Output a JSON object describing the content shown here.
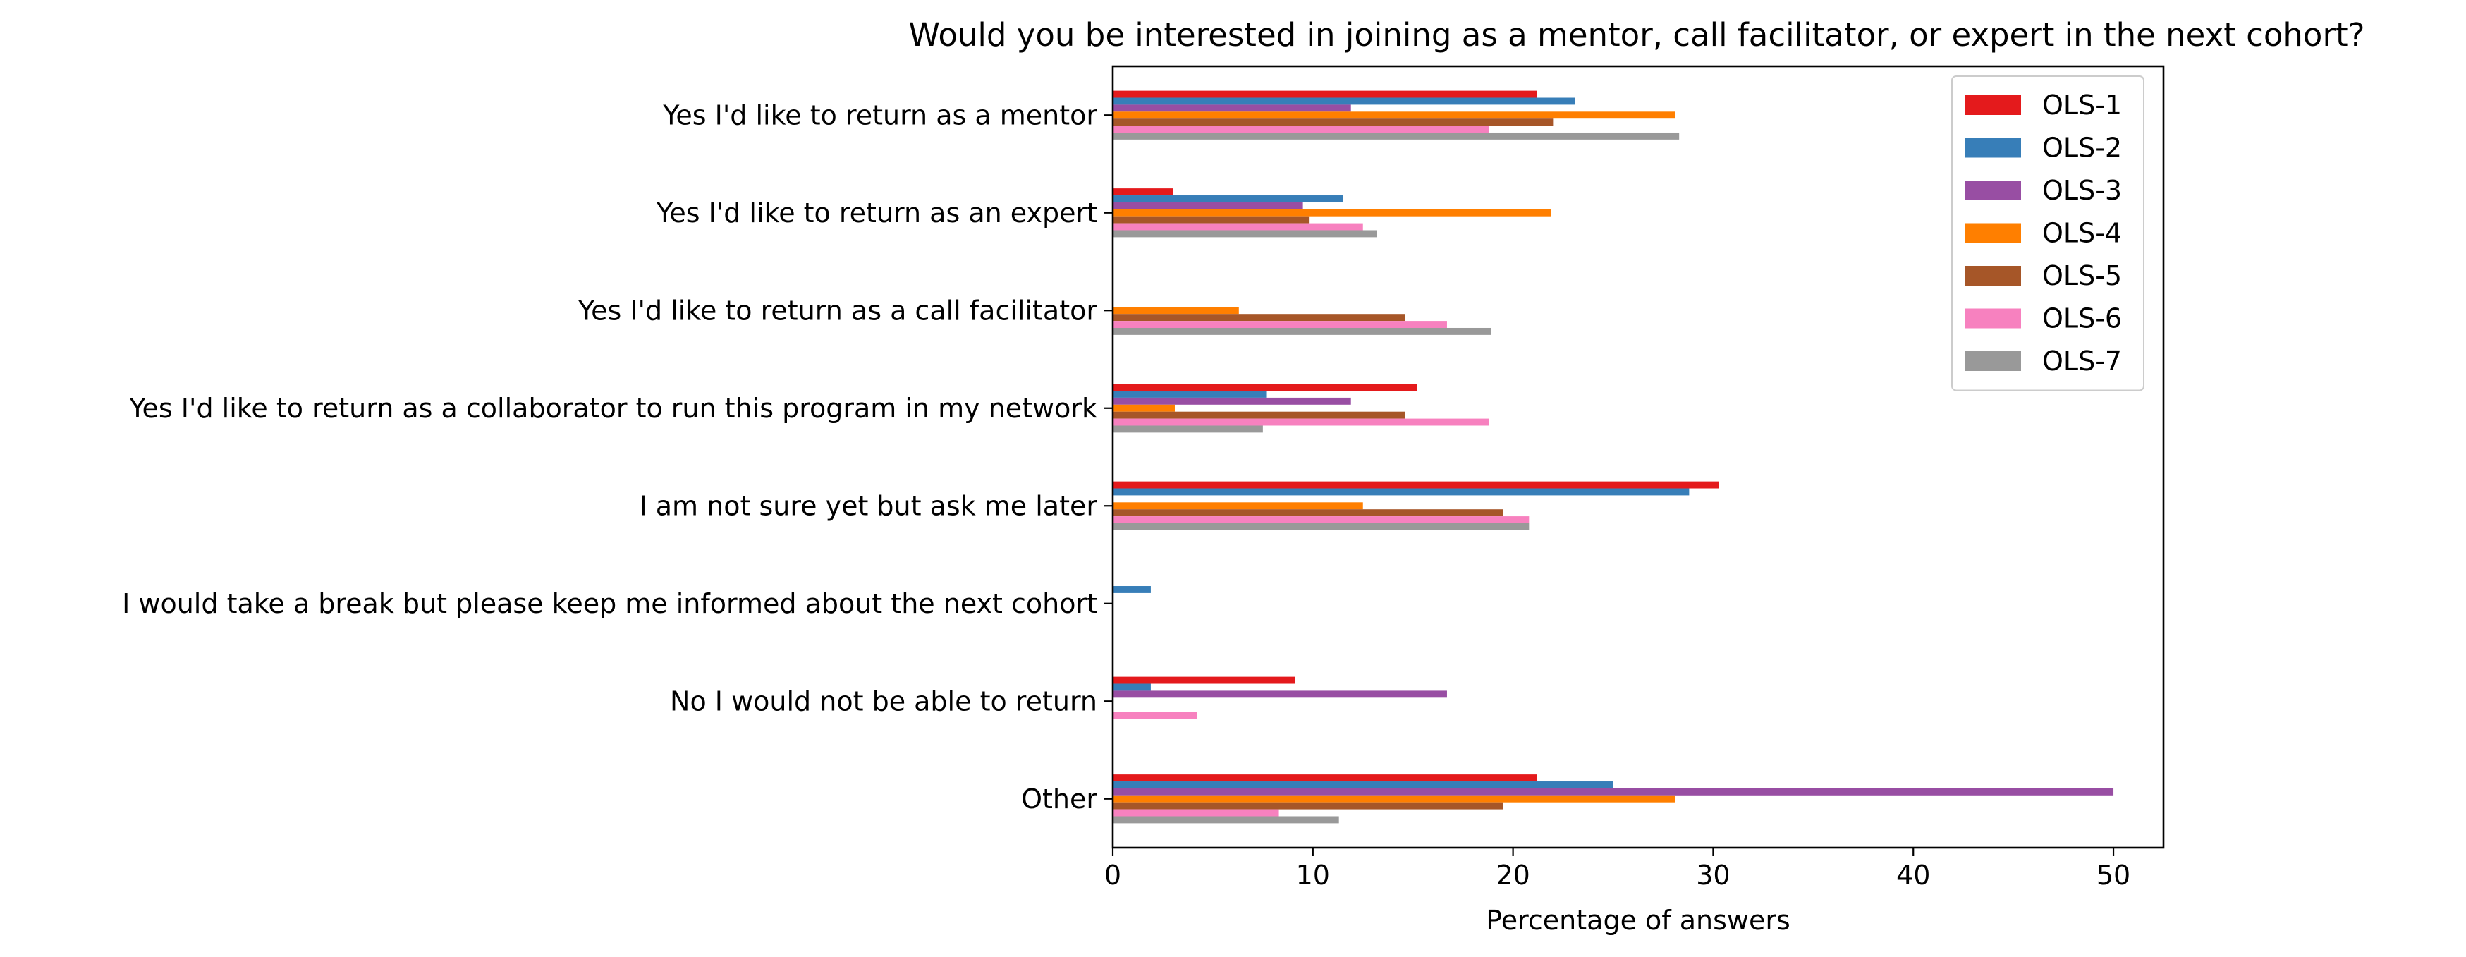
{
  "chart_data": {
    "type": "bar",
    "orientation": "horizontal",
    "title": "Would you be interested in joining as a mentor, call facilitator, or expert in the next cohort?",
    "xlabel": "Percentage of answers",
    "ylabel": "",
    "xlim": [
      0,
      52.5
    ],
    "xticks": [
      0,
      10,
      20,
      30,
      40,
      50
    ],
    "grid": false,
    "legend_position": "top-right",
    "categories": [
      "Yes I'd like to return as a mentor",
      "Yes I'd like to return as an expert",
      "Yes I'd like to return as a call facilitator",
      "Yes I'd like to return as a collaborator to run this program in my network",
      "I am not sure yet but ask me later",
      "I would take a break but please keep me informed about the next cohort",
      "No I would not be able to return",
      "Other"
    ],
    "series": [
      {
        "name": "OLS-1",
        "color": "#e41a1c",
        "values": [
          21.2,
          3.0,
          0,
          15.2,
          30.3,
          0,
          9.1,
          21.2
        ]
      },
      {
        "name": "OLS-2",
        "color": "#377eb8",
        "values": [
          23.1,
          11.5,
          0,
          7.7,
          28.8,
          1.9,
          1.9,
          25.0
        ]
      },
      {
        "name": "OLS-3",
        "color": "#984ea3",
        "values": [
          11.9,
          9.5,
          0,
          11.9,
          0,
          0,
          16.7,
          50.0
        ]
      },
      {
        "name": "OLS-4",
        "color": "#ff7f00",
        "values": [
          28.1,
          21.9,
          6.3,
          3.1,
          12.5,
          0,
          0,
          28.1
        ]
      },
      {
        "name": "OLS-5",
        "color": "#a65628",
        "values": [
          22.0,
          9.8,
          14.6,
          14.6,
          19.5,
          0,
          0,
          19.5
        ]
      },
      {
        "name": "OLS-6",
        "color": "#f781bf",
        "values": [
          18.8,
          12.5,
          16.7,
          18.8,
          20.8,
          0,
          4.2,
          8.3
        ]
      },
      {
        "name": "OLS-7",
        "color": "#999999",
        "values": [
          28.3,
          13.2,
          18.9,
          7.5,
          20.8,
          0,
          0,
          11.3
        ]
      }
    ]
  }
}
